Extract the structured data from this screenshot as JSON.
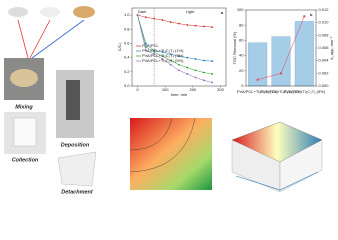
{
  "labels": {
    "mixing": "Mixing",
    "deposition": "Deposition",
    "collection": "Collection",
    "detachment": "Detachment"
  },
  "chart_data": [
    {
      "type": "line",
      "panel": "a",
      "xlabel": "time, min",
      "ylabel": "C/C₀",
      "dark": "Dark",
      "light": "Light",
      "divider_x": 60,
      "x": [
        0,
        30,
        60,
        90,
        120,
        150,
        180,
        210,
        240,
        270
      ],
      "xlim": [
        -20,
        320
      ],
      "xticks": [
        0,
        100,
        200,
        300
      ],
      "ylim": [
        0,
        1.1
      ],
      "yticks": [
        {
          "value": 0,
          "label": "0.0"
        },
        {
          "value": 0.2,
          "label": "0.2"
        },
        {
          "value": 0.4,
          "label": "0.4"
        },
        {
          "value": 0.6,
          "label": "0.6"
        },
        {
          "value": 0.8,
          "label": "0.8"
        },
        {
          "value": 1,
          "label": "1.0"
        }
      ],
      "series": [
        {
          "name": "PVA/PCL",
          "color": "#d62728",
          "values": [
            1,
            0.97,
            0.95,
            0.93,
            0.9,
            0.88,
            0.86,
            0.85,
            0.84,
            0.83
          ]
        },
        {
          "name": "PVA/PCL+Ti₃C₂Tₓ (1%)",
          "color": "#1f77b4",
          "values": [
            1,
            0.6,
            0.5,
            0.48,
            0.45,
            0.42,
            0.4,
            0.38,
            0.36,
            0.35
          ]
        },
        {
          "name": "PVA/PCL+Ti₃C₂Tₓ (3%)",
          "color": "#2ca02c",
          "values": [
            1,
            0.55,
            0.48,
            0.42,
            0.36,
            0.3,
            0.26,
            0.22,
            0.19,
            0.17
          ]
        },
        {
          "name": "PVA/PCL+Ti₃C₂Tₓ (5%)",
          "color": "#9467bd",
          "values": [
            1,
            0.5,
            0.45,
            0.38,
            0.3,
            0.22,
            0.17,
            0.12,
            0.08,
            0.05
          ]
        }
      ]
    },
    {
      "type": "bar",
      "panel": "b",
      "ylabel": "TOC Removal (%)",
      "y2label": "k_app, min⁻¹",
      "categories": [
        "PVA/PCL+Ti₃C₂Tₓ (1%)",
        "PVA/PCL+Ti₃C₂Tₓ (3%)",
        "PVA/PCL+Ti₃C₂Tₓ (5%)"
      ],
      "ylim": [
        0,
        100
      ],
      "yticks": [
        0,
        20,
        40,
        60,
        80,
        100
      ],
      "y2lim": [
        0,
        0.012
      ],
      "y2ticks": [
        {
          "value": 0,
          "label": "0.000"
        },
        {
          "value": 0.002,
          "label": "0.002"
        },
        {
          "value": 0.004,
          "label": "0.004"
        },
        {
          "value": 0.006,
          "label": "0.006"
        },
        {
          "value": 0.008,
          "label": "0.008"
        },
        {
          "value": 0.01,
          "label": "0.010"
        },
        {
          "value": 0.012,
          "label": "0.012"
        }
      ],
      "series": [
        {
          "name": "TOC",
          "color": "#a6cde8",
          "values": [
            57,
            65,
            85
          ]
        },
        {
          "name": "k",
          "color": "#e8405a",
          "axis": "y2",
          "values": [
            0.001,
            0.002,
            0.011
          ]
        }
      ]
    }
  ]
}
